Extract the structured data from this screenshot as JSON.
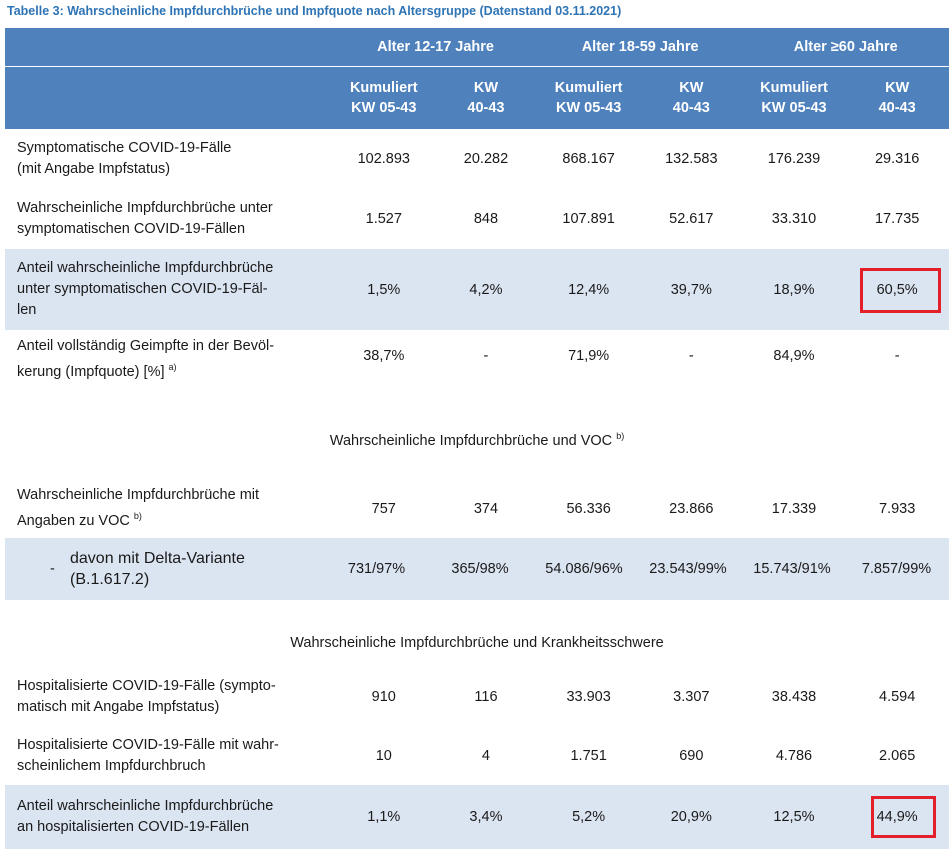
{
  "caption": "Tabelle 3: Wahrscheinliche Impfdurchbrüche und Impfquote nach Altersgruppe (Datenstand 03.11.2021)",
  "header": {
    "groups": [
      "Alter 12-17 Jahre",
      "Alter 18-59 Jahre",
      "Alter ≥60 Jahre"
    ],
    "cum_line1": "Kumuliert",
    "cum_line2": "KW 05-43",
    "kw_line1": "KW",
    "kw_line2": "40-43"
  },
  "rows": [
    {
      "label1": "Symptomatische COVID-19-Fälle",
      "label2": "(mit Angabe Impfstatus)",
      "values": [
        "102.893",
        "20.282",
        "868.167",
        "132.583",
        "176.239",
        "29.316"
      ]
    },
    {
      "label1": "Wahrscheinliche Impfdurchbrüche unter",
      "label2": "symptomatischen COVID-19-Fällen",
      "values": [
        "1.527",
        "848",
        "107.891",
        "52.617",
        "33.310",
        "17.735"
      ]
    },
    {
      "label1": "Anteil wahrscheinliche Impfdurchbrüche",
      "label2": "unter symptomatischen COVID-19-Fäl-",
      "label3": "len",
      "values": [
        "1,5%",
        "4,2%",
        "12,4%",
        "39,7%",
        "18,9%",
        "60,5%"
      ]
    },
    {
      "label1": "Anteil vollständig Geimpfte in der Bevöl-",
      "label2": "kerung (Impfquote) [%]",
      "sup": "a)",
      "values": [
        "38,7%",
        "-",
        "71,9%",
        "-",
        "84,9%",
        "-"
      ]
    }
  ],
  "section_voc": {
    "title": "Wahrscheinliche Impfdurchbrüche und VOC",
    "sup": "b)"
  },
  "voc_rows": [
    {
      "label1": "Wahrscheinliche Impfdurchbrüche mit",
      "label2": "Angaben zu VOC",
      "sup": "b)",
      "values": [
        "757",
        "374",
        "56.336",
        "23.866",
        "17.339",
        "7.933"
      ]
    },
    {
      "dash": "-",
      "label1": "davon mit Delta-Variante",
      "label2": "(B.1.617.2)",
      "values": [
        "731/97%",
        "365/98%",
        "54.086/96%",
        "23.543/99%",
        "15.743/91%",
        "7.857/99%"
      ]
    }
  ],
  "section_severity": {
    "title": "Wahrscheinliche Impfdurchbrüche und Krankheitsschwere"
  },
  "severity_rows": [
    {
      "label1": "Hospitalisierte COVID-19-Fälle (sympto-",
      "label2": "matisch mit Angabe Impfstatus)",
      "values": [
        "910",
        "116",
        "33.903",
        "3.307",
        "38.438",
        "4.594"
      ]
    },
    {
      "label1": "Hospitalisierte COVID-19-Fälle mit wahr-",
      "label2": "scheinlichem Impfdurchbruch",
      "values": [
        "10",
        "4",
        "1.751",
        "690",
        "4.786",
        "2.065"
      ]
    },
    {
      "label1": "Anteil wahrscheinliche Impfdurchbrüche",
      "label2": "an hospitalisierten COVID-19-Fällen",
      "values": [
        "1,1%",
        "3,4%",
        "5,2%",
        "20,9%",
        "12,5%",
        "44,9%"
      ]
    }
  ],
  "highlight_color": "#e3202a",
  "header_color": "#4f81bd",
  "shade_color": "#dbe4f1"
}
